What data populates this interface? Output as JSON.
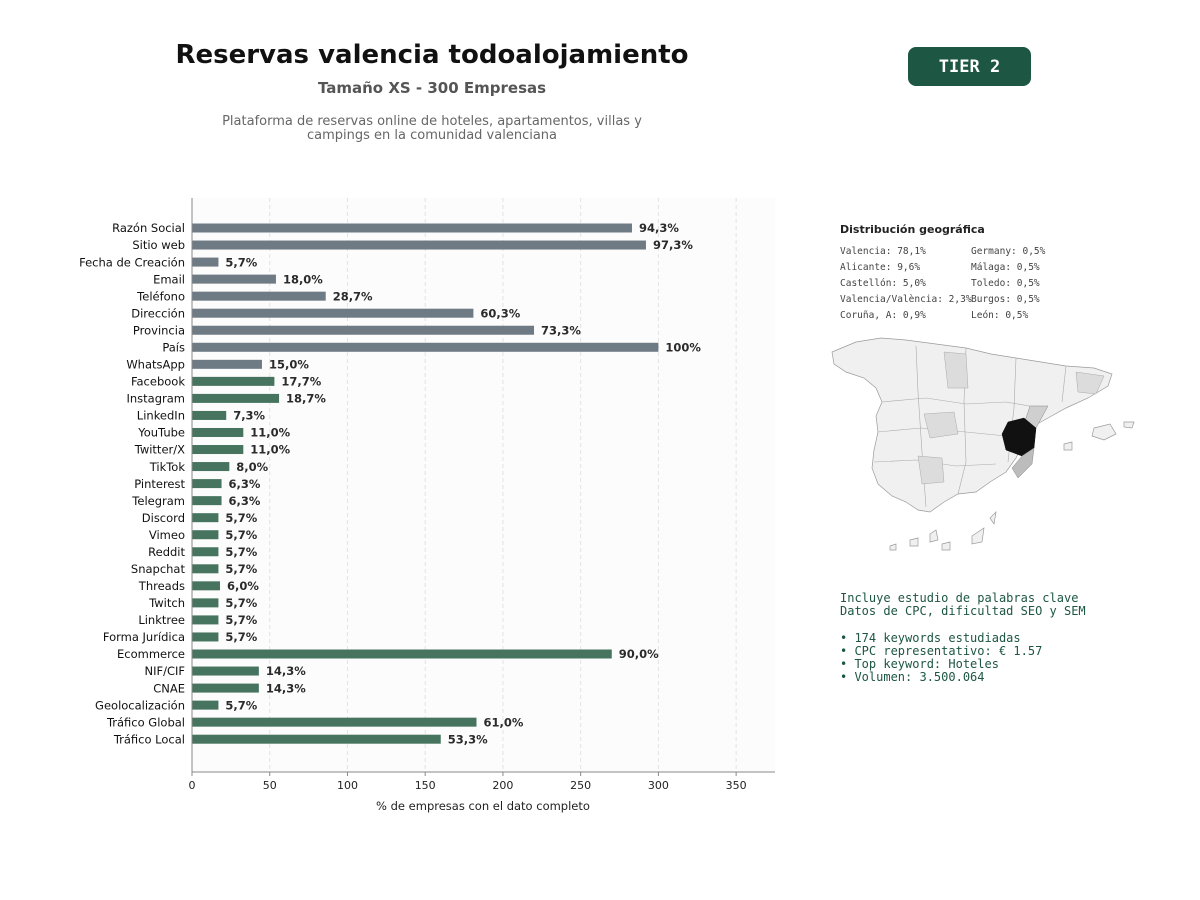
{
  "header": {
    "title": "Reservas valencia todoalojamiento",
    "subtitle": "Tamaño XS - 300 Empresas",
    "description_line1": "Plataforma de reservas online de hoteles, apartamentos, villas y",
    "description_line2": "campings en la comunidad valenciana",
    "tier_badge": "TIER 2"
  },
  "colors": {
    "gray_bar": "#6e7a84",
    "green_bar": "#46745f",
    "badge": "#1d5643",
    "highlight_region": "#111111"
  },
  "chart_data": {
    "type": "bar",
    "orientation": "horizontal",
    "categories": [
      "Razón Social",
      "Sitio web",
      "Fecha de Creación",
      "Email",
      "Teléfono",
      "Dirección",
      "Provincia",
      "País",
      "WhatsApp",
      "Facebook",
      "Instagram",
      "LinkedIn",
      "YouTube",
      "Twitter/X",
      "TikTok",
      "Pinterest",
      "Telegram",
      "Discord",
      "Vimeo",
      "Reddit",
      "Snapchat",
      "Threads",
      "Twitch",
      "Linktree",
      "Forma Jurídica",
      "Ecommerce",
      "NIF/CIF",
      "CNAE",
      "Geolocalización",
      "Tráfico Global",
      "Tráfico Local"
    ],
    "values": [
      283,
      292,
      17,
      54,
      86,
      181,
      220,
      300,
      45,
      53,
      56,
      22,
      33,
      33,
      24,
      19,
      19,
      17,
      17,
      17,
      17,
      18,
      17,
      17,
      17,
      270,
      43,
      43,
      17,
      183,
      160
    ],
    "labels": [
      "94,3%",
      "97,3%",
      "5,7%",
      "18,0%",
      "28,7%",
      "60,3%",
      "73,3%",
      "100%",
      "15,0%",
      "17,7%",
      "18,7%",
      "7,3%",
      "11,0%",
      "11,0%",
      "8,0%",
      "6,3%",
      "6,3%",
      "5,7%",
      "5,7%",
      "5,7%",
      "5,7%",
      "6,0%",
      "5,7%",
      "5,7%",
      "5,7%",
      "90,0%",
      "14,3%",
      "14,3%",
      "5,7%",
      "61,0%",
      "53,3%"
    ],
    "groups": [
      "gray",
      "gray",
      "gray",
      "gray",
      "gray",
      "gray",
      "gray",
      "gray",
      "gray",
      "green",
      "green",
      "green",
      "green",
      "green",
      "green",
      "green",
      "green",
      "green",
      "green",
      "green",
      "green",
      "green",
      "green",
      "green",
      "green",
      "green",
      "green",
      "green",
      "green",
      "green",
      "green"
    ],
    "xlabel": "% de empresas con el dato completo",
    "xlim": [
      0,
      375
    ],
    "xticks": [
      0,
      50,
      100,
      150,
      200,
      250,
      300,
      350
    ],
    "grid": "vertical dashed"
  },
  "geo": {
    "title": "Distribución geográfica",
    "items": [
      {
        "label": "Valencia: 78,1%"
      },
      {
        "label": "Germany: 0,5%"
      },
      {
        "label": "Alicante: 9,6%"
      },
      {
        "label": "Málaga: 0,5%"
      },
      {
        "label": "Castellón: 5,0%"
      },
      {
        "label": "Toledo: 0,5%"
      },
      {
        "label": "Valencia/València: 2,3%"
      },
      {
        "label": "Burgos: 0,5%"
      },
      {
        "label": "Coruña, A: 0,9%"
      },
      {
        "label": "León: 0,5%"
      }
    ]
  },
  "keywords": {
    "line1": "Incluye estudio de palabras clave",
    "line2": "Datos de CPC, dificultad SEO y SEM",
    "bullets": [
      "• 174 keywords estudiadas",
      "• CPC representativo: € 1.57",
      "• Top keyword: Hoteles",
      "• Volumen: 3.500.064"
    ]
  }
}
